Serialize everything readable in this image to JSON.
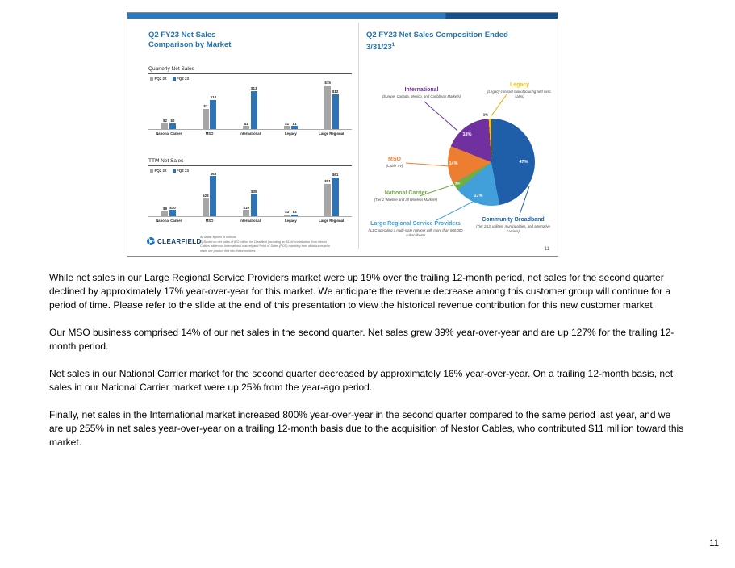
{
  "page": {
    "number": "11"
  },
  "slide": {
    "page_number": "11",
    "left": {
      "title_line1": "Q2 FY23 Net Sales",
      "title_line2": "Comparison by Market",
      "logo_text": "CLEARFIELD",
      "footnote1": "All dollar figures in millions",
      "footnote2": "1) Based on net sales of $72 million for Clearfield (including an $11M contribution from Nestor Cables within our International market) and Point of Sales (POS) reporting from distributors who resell our product line into these markets."
    },
    "right": {
      "title_line1": "Q2 FY23 Net Sales Composition Ended",
      "title_line2": "3/31/23",
      "title_sup": "1"
    }
  },
  "chart_data": [
    {
      "type": "bar",
      "title": "Quarterly Net Sales",
      "unit": "millions USD",
      "value_prefix": "$",
      "categories": [
        "National Carrier",
        "MSO",
        "International",
        "Legacy",
        "Large Regional"
      ],
      "series": [
        {
          "name": "FQ2 22",
          "color": "#a6a6a6",
          "values": [
            2,
            7,
            1,
            1,
            15
          ]
        },
        {
          "name": "FQ2 23",
          "color": "#2e74b5",
          "values": [
            2,
            10,
            13,
            1,
            12
          ]
        }
      ],
      "ylim": [
        0,
        16
      ],
      "grid": false,
      "legend_position": "top-left"
    },
    {
      "type": "bar",
      "title": "TTM Net Sales",
      "unit": "millions USD",
      "value_prefix": "$",
      "categories": [
        "National Carrier",
        "MSO",
        "International",
        "Legacy",
        "Large Regional"
      ],
      "series": [
        {
          "name": "FQ2 22",
          "color": "#a6a6a6",
          "values": [
            8,
            28,
            10,
            3,
            51
          ]
        },
        {
          "name": "FQ2 23",
          "color": "#2e74b5",
          "values": [
            10,
            63,
            35,
            3,
            61
          ]
        }
      ],
      "ylim": [
        0,
        66
      ],
      "grid": false,
      "legend_position": "top-left"
    },
    {
      "type": "pie",
      "title": "Q2 FY23 Net Sales Composition Ended 3/31/23",
      "slices": [
        {
          "label": "Community Broadband",
          "pct": 47,
          "pct_text": "47%",
          "color": "#1f5fa9",
          "description": "(Tier 2&3, utilities, municipalities, and alternative carriers)"
        },
        {
          "label": "Large Regional Service Providers",
          "pct": 17,
          "pct_text": "17%",
          "color": "#41a0d9",
          "description": "(ILEC operating a multi-state network with more than 500,000 subscribers)"
        },
        {
          "label": "National Carrier",
          "pct": 3,
          "pct_text": "3%",
          "color": "#70ad47",
          "description": "(Tier 1 Wireline and all Wireless Markets)"
        },
        {
          "label": "MSO",
          "pct": 14,
          "pct_text": "14%",
          "color": "#ed7d31",
          "description": "(Cable TV)"
        },
        {
          "label": "International",
          "pct": 18,
          "pct_text": "18%",
          "color": "#7030a0",
          "description": "(Europe, Canada, Mexico, and Caribbean Markets)"
        },
        {
          "label": "Legacy",
          "pct": 1,
          "pct_text": "1%",
          "color": "#ffc000",
          "description": "(Legacy contract manufacturing and misc. sales)"
        }
      ]
    }
  ],
  "body": {
    "paragraphs": [
      "While net sales in our Large Regional Service Providers market were up 19% over the trailing 12-month period, net sales for the second quarter declined by approximately 17% year-over-year for this market. We anticipate the revenue decrease among this customer group will continue for a period of time. Please refer to the slide at the end of this presentation to view the historical revenue contribution for this new customer market.",
      "Our MSO business comprised 14% of our net sales in the second quarter. Net sales grew 39% year-over-year and are up 127% for the trailing 12-month period.",
      "Net sales in our National Carrier market for the second quarter decreased by approximately 16% year-over-year. On a trailing 12-month basis, net sales in our National Carrier market were up 25% from the year-ago period.",
      "Finally, net sales in the International market increased 800% year-over-year in the second quarter compared to the same period last year, and we are up 255% in net sales year-over-year on a trailing 12-month basis due to the acquisition of Nestor Cables, who contributed $11 million toward this market."
    ]
  }
}
